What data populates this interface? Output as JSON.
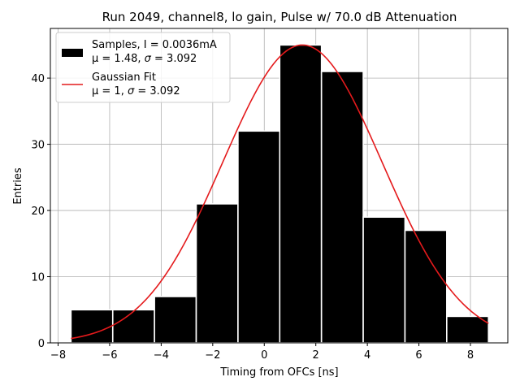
{
  "chart_data": {
    "type": "bar",
    "title": "Run 2049, channel8, lo gain, Pulse w/ 70.0 dB Attenuation",
    "xlabel": "Timing from OFCs [ns]",
    "ylabel": "Entries",
    "xlim": [
      -8.3,
      9.45
    ],
    "ylim": [
      0,
      47.5
    ],
    "grid": true,
    "x_ticks": [
      -8,
      -6,
      -4,
      -2,
      0,
      2,
      4,
      6,
      8
    ],
    "y_ticks": [
      0,
      10,
      20,
      30,
      40
    ],
    "histogram": {
      "bin_edges": [
        -7.5,
        -5.88,
        -4.26,
        -2.64,
        -1.02,
        0.6,
        2.22,
        3.84,
        5.46,
        7.08,
        8.7
      ],
      "counts": [
        5,
        5,
        7,
        21,
        32,
        45,
        41,
        19,
        17,
        4
      ],
      "color": "#000000",
      "edge_color": "#ffffff"
    },
    "fit": {
      "name": "Gaussian Fit",
      "mu": 1.48,
      "sigma": 3.092,
      "amplitude": 45,
      "x_range": [
        -7.5,
        8.7
      ],
      "color": "#e41a1c"
    },
    "legend": {
      "placement": "top-left",
      "entries": [
        {
          "line1": "Samples, I = 0.0036mA",
          "line2_prefix": "μ = 1.48, ",
          "line2_sigma": "σ",
          "line2_suffix": " = 3.092"
        },
        {
          "line1": "Gaussian Fit",
          "line2_prefix": "μ = 1, ",
          "line2_sigma": "σ",
          "line2_suffix": " = 3.092"
        }
      ]
    }
  }
}
